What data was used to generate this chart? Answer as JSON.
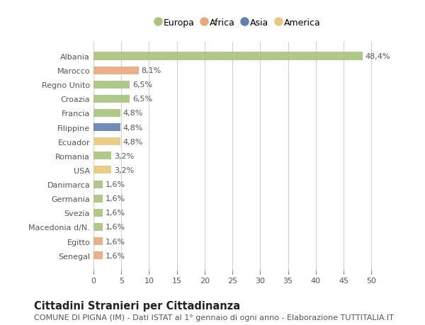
{
  "countries": [
    "Albania",
    "Marocco",
    "Regno Unito",
    "Croazia",
    "Francia",
    "Filippine",
    "Ecuador",
    "Romania",
    "USA",
    "Danimarca",
    "Germania",
    "Svezia",
    "Macedonia d/N.",
    "Egitto",
    "Senegal"
  ],
  "values": [
    48.4,
    8.1,
    6.5,
    6.5,
    4.8,
    4.8,
    4.8,
    3.2,
    3.2,
    1.6,
    1.6,
    1.6,
    1.6,
    1.6,
    1.6
  ],
  "labels": [
    "48,4%",
    "8,1%",
    "6,5%",
    "6,5%",
    "4,8%",
    "4,8%",
    "4,8%",
    "3,2%",
    "3,2%",
    "1,6%",
    "1,6%",
    "1,6%",
    "1,6%",
    "1,6%",
    "1,6%"
  ],
  "continents": [
    "Europa",
    "Africa",
    "Europa",
    "Europa",
    "Europa",
    "Asia",
    "America",
    "Europa",
    "America",
    "Europa",
    "Europa",
    "Europa",
    "Europa",
    "Africa",
    "Africa"
  ],
  "continent_colors": {
    "Europa": "#a8c47e",
    "Africa": "#e8a87c",
    "Asia": "#6080b0",
    "America": "#e8c87c"
  },
  "legend_order": [
    "Europa",
    "Africa",
    "Asia",
    "America"
  ],
  "xlim": [
    0,
    52
  ],
  "xticks": [
    0,
    5,
    10,
    15,
    20,
    25,
    30,
    35,
    40,
    45,
    50
  ],
  "background_color": "#ffffff",
  "grid_color": "#d0d0d0",
  "title": "Cittadini Stranieri per Cittadinanza",
  "subtitle": "COMUNE DI PIGNA (IM) - Dati ISTAT al 1° gennaio di ogni anno - Elaborazione TUTTITALIA.IT",
  "title_fontsize": 10.5,
  "subtitle_fontsize": 8,
  "label_fontsize": 8,
  "tick_fontsize": 8,
  "legend_fontsize": 9
}
